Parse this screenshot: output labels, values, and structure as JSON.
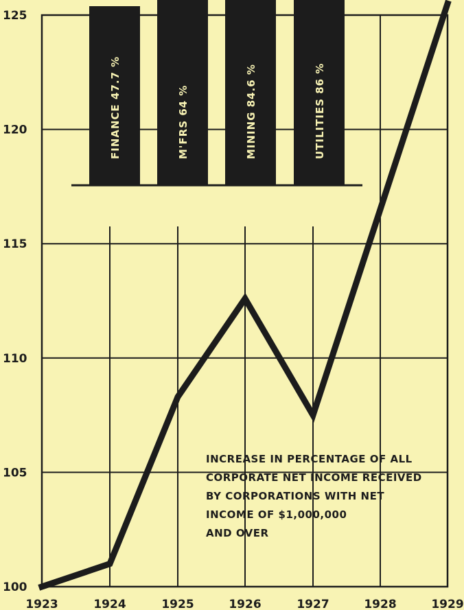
{
  "chart_data": [
    {
      "type": "line",
      "x": [
        "1923",
        "1924",
        "1925",
        "1926",
        "1927",
        "1928",
        "1929"
      ],
      "values": [
        100,
        101,
        108.3,
        112.6,
        107.5,
        116.5,
        125.5
      ],
      "y_ticks": [
        "100",
        "105",
        "110",
        "115",
        "120",
        "125"
      ],
      "ylim": [
        100,
        125
      ],
      "grid": true,
      "annotation": [
        "INCREASE IN PERCENTAGE OF ALL",
        "CORPORATE NET INCOME RECEIVED",
        "BY CORPORATIONS WITH NET",
        "INCOME OF $1,000,000",
        "AND OVER"
      ],
      "line_color": "#1c1c1c",
      "background": "#f8f3b4"
    },
    {
      "type": "bar",
      "categories": [
        "FINANCE",
        "M'FRS",
        "MINING",
        "UTILITIES"
      ],
      "values": [
        47.7,
        64,
        84.6,
        86
      ],
      "value_labels": [
        "47.7 %",
        "64 %",
        "84.6 %",
        "86 %"
      ],
      "bar_color": "#1c1c1c"
    }
  ]
}
